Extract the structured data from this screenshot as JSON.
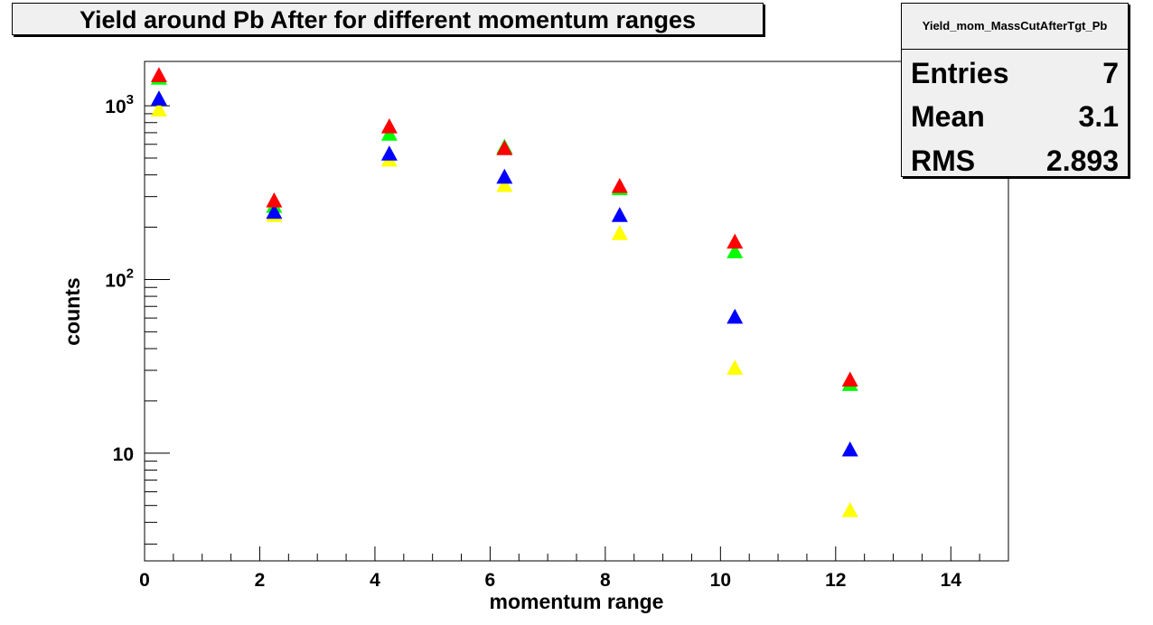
{
  "chart_data": {
    "type": "scatter",
    "title": "Yield around Pb After for different momentum ranges",
    "xlabel": "momentum range",
    "ylabel": "counts",
    "xlim": [
      0,
      15
    ],
    "ylim": [
      2.4,
      1800
    ],
    "yscale": "log",
    "x_ticks": [
      "0",
      "2",
      "4",
      "6",
      "8",
      "10",
      "12",
      "14"
    ],
    "y_tick_labels": [
      {
        "value": 10,
        "base": "10",
        "exp": ""
      },
      {
        "value": 100,
        "base": "10",
        "exp": "2"
      },
      {
        "value": 1000,
        "base": "10",
        "exp": "3"
      }
    ],
    "x": [
      0.25,
      2.25,
      4.25,
      6.25,
      8.25,
      10.25,
      12.25
    ],
    "series": [
      {
        "color": "#ffff00",
        "values": [
          950,
          235,
          490,
          350,
          185,
          31,
          4.7
        ]
      },
      {
        "color": "#00ff00",
        "values": [
          1450,
          265,
          690,
          580,
          335,
          145,
          25
        ]
      },
      {
        "color": "#0000ff",
        "values": [
          1100,
          245,
          530,
          390,
          235,
          61,
          10.5
        ]
      },
      {
        "color": "#ff0000",
        "values": [
          1500,
          285,
          760,
          570,
          345,
          165,
          26.5
        ]
      }
    ],
    "grid": false,
    "stats_box": {
      "name": "Yield_mom_MassCutAfterTgt_Pb",
      "entries_label": "Entries",
      "entries_value": "7",
      "mean_label": "Mean",
      "mean_value": "3.1",
      "rms_label": "RMS",
      "rms_value": "2.893"
    }
  }
}
